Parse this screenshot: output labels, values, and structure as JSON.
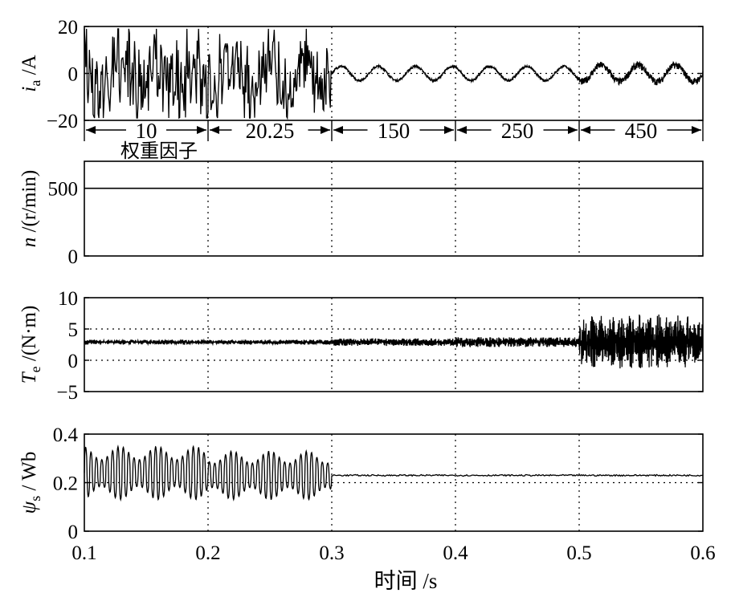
{
  "xlabel": "时间 /s",
  "xticks": [
    "0.1",
    "0.2",
    "0.3",
    "0.4",
    "0.5",
    "0.6"
  ],
  "weight_label": "权重因子",
  "segments": [
    "10",
    "20.25",
    "150",
    "250",
    "450"
  ],
  "chart_data": [
    {
      "type": "line",
      "id": "ia",
      "ylabel": "i_a /A",
      "ylabel_main": "i",
      "ylabel_sub": "a",
      "ylabel_rest": " /A",
      "xlim": [
        0.1,
        0.6
      ],
      "ylim": [
        -20,
        20
      ],
      "yticks": [
        "20",
        "0",
        "−20"
      ],
      "yticks_values": [
        20,
        0,
        -20
      ],
      "grid_x": [
        0.2,
        0.3,
        0.4,
        0.5
      ],
      "ref_lines": [
        0
      ],
      "segments": [
        {
          "x0": 0.1,
          "x1": 0.2,
          "weight": "10",
          "waveform": "distorted",
          "amplitude": 18
        },
        {
          "x0": 0.2,
          "x1": 0.3,
          "weight": "20.25",
          "waveform": "distorted",
          "amplitude": 16
        },
        {
          "x0": 0.3,
          "x1": 0.4,
          "weight": "150",
          "waveform": "sinusoidal",
          "amplitude": 3
        },
        {
          "x0": 0.4,
          "x1": 0.5,
          "weight": "250",
          "waveform": "sinusoidal",
          "amplitude": 3
        },
        {
          "x0": 0.5,
          "x1": 0.6,
          "weight": "450",
          "waveform": "noisy sinusoidal",
          "amplitude": 3.5
        }
      ],
      "fundamental_frequency_hz": 33.3
    },
    {
      "type": "line",
      "id": "speed",
      "ylabel": "n /(r/min)",
      "ylabel_main": "n",
      "ylabel_sub": "",
      "ylabel_rest": " /(r/min)",
      "xlim": [
        0.1,
        0.6
      ],
      "ylim": [
        0,
        700
      ],
      "yticks": [
        "500",
        "0"
      ],
      "yticks_values": [
        500,
        0
      ],
      "grid_x": [
        0.2,
        0.3,
        0.4,
        0.5
      ],
      "ref_lines": [],
      "series": [
        {
          "x": [
            0.1,
            0.6
          ],
          "y": [
            500,
            500
          ]
        }
      ]
    },
    {
      "type": "line",
      "id": "torque",
      "ylabel": "T_e /(N·m)",
      "ylabel_main": "T",
      "ylabel_sub": "e",
      "ylabel_rest": " /(N·m)",
      "xlim": [
        0.1,
        0.6
      ],
      "ylim": [
        -5,
        10
      ],
      "yticks": [
        "10",
        "5",
        "0",
        "−5"
      ],
      "yticks_values": [
        10,
        5,
        0,
        -5
      ],
      "grid_x": [
        0.2,
        0.3,
        0.4,
        0.5
      ],
      "ref_lines": [
        5,
        0
      ],
      "segments": [
        {
          "x0": 0.1,
          "x1": 0.3,
          "mean": 2.9,
          "ripple": 0.4
        },
        {
          "x0": 0.3,
          "x1": 0.4,
          "mean": 2.9,
          "ripple": 0.6
        },
        {
          "x0": 0.4,
          "x1": 0.5,
          "mean": 2.9,
          "ripple": 0.8
        },
        {
          "x0": 0.5,
          "x1": 0.6,
          "mean": 2.9,
          "ripple": 4.5
        }
      ]
    },
    {
      "type": "line",
      "id": "flux",
      "ylabel": "ψ_s / Wb",
      "ylabel_main": "ψ",
      "ylabel_sub": "s",
      "ylabel_rest": " / Wb",
      "xlim": [
        0.1,
        0.6
      ],
      "ylim": [
        0,
        0.4
      ],
      "yticks": [
        "0.4",
        "0.2",
        "0"
      ],
      "yticks_values": [
        0.4,
        0.2,
        0
      ],
      "grid_x": [
        0.2,
        0.3,
        0.4,
        0.5
      ],
      "ref_lines": [
        0.2
      ],
      "segments": [
        {
          "x0": 0.1,
          "x1": 0.2,
          "mean": 0.24,
          "min": 0.13,
          "max": 0.35
        },
        {
          "x0": 0.2,
          "x1": 0.3,
          "mean": 0.23,
          "min": 0.13,
          "max": 0.33
        },
        {
          "x0": 0.3,
          "x1": 0.6,
          "mean": 0.23,
          "ripple": 0.003
        }
      ]
    }
  ]
}
